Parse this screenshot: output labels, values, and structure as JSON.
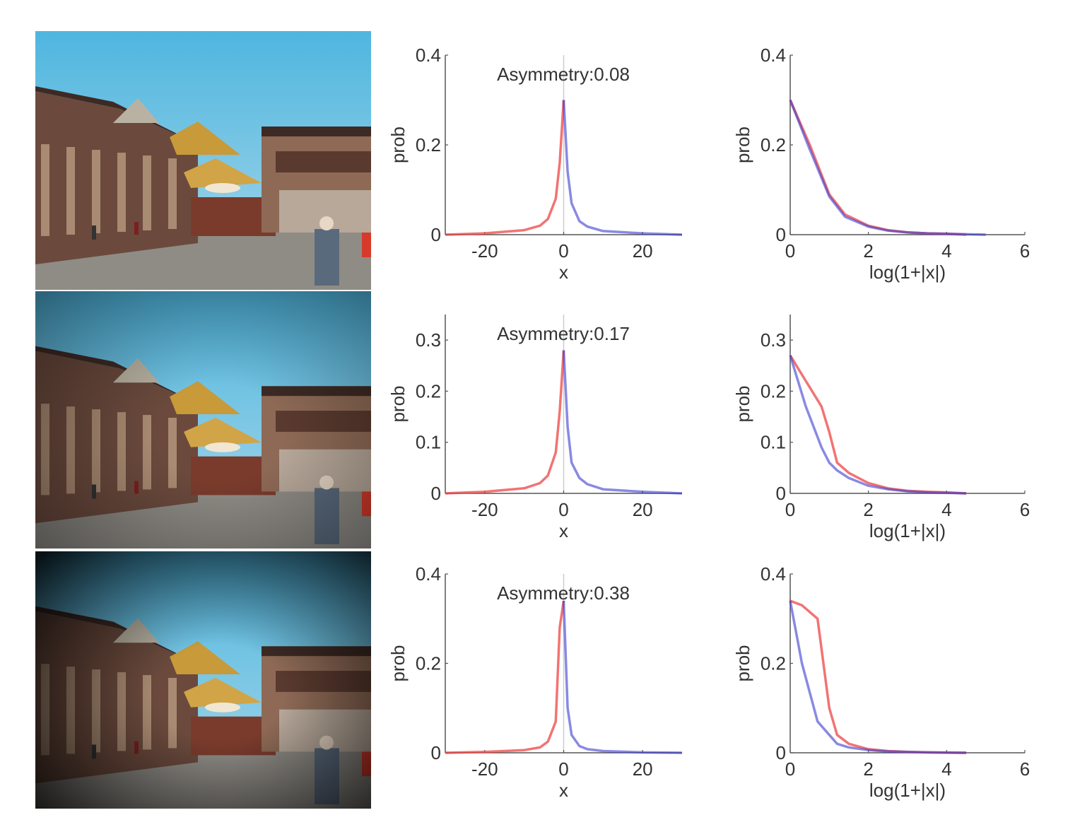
{
  "colors": {
    "red_series": "#ee4444",
    "blue_series": "#3a3ad0",
    "axis": "#555555"
  },
  "photos": [
    {
      "variant": "original",
      "vignette": 0.0
    },
    {
      "variant": "mild-vignette",
      "vignette": 0.45
    },
    {
      "variant": "strong-vignette",
      "vignette": 0.9
    }
  ],
  "chart_data": [
    {
      "type": "line",
      "panel": "row1-linear",
      "annotation": "Asymmetry:0.08",
      "xlabel": "x",
      "ylabel": "prob",
      "xlim": [
        -30,
        30
      ],
      "ylim": [
        0,
        0.4
      ],
      "xticks": [
        -20,
        0,
        20
      ],
      "yticks": [
        0,
        0.2,
        0.4
      ],
      "series": [
        {
          "color": "red",
          "x": [
            -30,
            -20,
            -10,
            -6,
            -4,
            -2,
            -1,
            0
          ],
          "y": [
            0.0,
            0.003,
            0.01,
            0.02,
            0.035,
            0.08,
            0.16,
            0.3
          ]
        },
        {
          "color": "blue",
          "x": [
            0,
            1,
            2,
            4,
            6,
            10,
            20,
            30
          ],
          "y": [
            0.3,
            0.14,
            0.07,
            0.03,
            0.018,
            0.008,
            0.003,
            0.0
          ]
        }
      ]
    },
    {
      "type": "line",
      "panel": "row1-log",
      "xlabel": "log(1+|x|)",
      "ylabel": "prob",
      "xlim": [
        0,
        6
      ],
      "ylim": [
        0,
        0.4
      ],
      "xticks": [
        0,
        2,
        4,
        6
      ],
      "yticks": [
        0,
        0.2,
        0.4
      ],
      "series": [
        {
          "color": "red",
          "x": [
            0,
            0.5,
            1.0,
            1.4,
            2,
            2.5,
            3,
            3.5,
            4,
            4.5
          ],
          "y": [
            0.3,
            0.2,
            0.09,
            0.045,
            0.02,
            0.01,
            0.005,
            0.003,
            0.002,
            0.0
          ]
        },
        {
          "color": "blue",
          "x": [
            0,
            0.5,
            1.0,
            1.4,
            2,
            2.5,
            3,
            3.5,
            4,
            4.5,
            5
          ],
          "y": [
            0.3,
            0.19,
            0.085,
            0.04,
            0.018,
            0.009,
            0.005,
            0.003,
            0.002,
            0.001,
            0.0
          ]
        }
      ]
    },
    {
      "type": "line",
      "panel": "row2-linear",
      "annotation": "Asymmetry:0.17",
      "xlabel": "x",
      "ylabel": "prob",
      "xlim": [
        -30,
        30
      ],
      "ylim": [
        0,
        0.35
      ],
      "xticks": [
        -20,
        0,
        20
      ],
      "yticks": [
        0,
        0.1,
        0.2,
        0.3
      ],
      "series": [
        {
          "color": "red",
          "x": [
            -30,
            -20,
            -10,
            -6,
            -4,
            -2,
            -1,
            0
          ],
          "y": [
            0.0,
            0.003,
            0.01,
            0.02,
            0.035,
            0.08,
            0.16,
            0.28
          ]
        },
        {
          "color": "blue",
          "x": [
            0,
            1,
            2,
            4,
            6,
            10,
            20,
            30
          ],
          "y": [
            0.28,
            0.13,
            0.06,
            0.03,
            0.018,
            0.008,
            0.003,
            0.0
          ]
        }
      ]
    },
    {
      "type": "line",
      "panel": "row2-log",
      "xlabel": "log(1+|x|)",
      "ylabel": "prob",
      "xlim": [
        0,
        6
      ],
      "ylim": [
        0,
        0.35
      ],
      "xticks": [
        0,
        2,
        4,
        6
      ],
      "yticks": [
        0,
        0.1,
        0.2,
        0.3
      ],
      "series": [
        {
          "color": "red",
          "x": [
            0,
            0.4,
            0.8,
            1.0,
            1.2,
            1.5,
            2,
            2.5,
            3,
            3.5,
            4,
            4.5
          ],
          "y": [
            0.27,
            0.22,
            0.17,
            0.12,
            0.06,
            0.04,
            0.02,
            0.01,
            0.005,
            0.003,
            0.002,
            0.0
          ]
        },
        {
          "color": "blue",
          "x": [
            0,
            0.4,
            0.8,
            1.0,
            1.2,
            1.5,
            2,
            2.5,
            3,
            3.5,
            4,
            4.5
          ],
          "y": [
            0.27,
            0.17,
            0.09,
            0.06,
            0.045,
            0.03,
            0.015,
            0.008,
            0.004,
            0.002,
            0.001,
            0.0
          ]
        }
      ]
    },
    {
      "type": "line",
      "panel": "row3-linear",
      "annotation": "Asymmetry:0.38",
      "xlabel": "x",
      "ylabel": "prob",
      "xlim": [
        -30,
        30
      ],
      "ylim": [
        0,
        0.4
      ],
      "xticks": [
        -20,
        0,
        20
      ],
      "yticks": [
        0,
        0.2,
        0.4
      ],
      "series": [
        {
          "color": "red",
          "x": [
            -30,
            -20,
            -10,
            -6,
            -4,
            -2,
            -1,
            0
          ],
          "y": [
            0.0,
            0.002,
            0.006,
            0.012,
            0.025,
            0.07,
            0.28,
            0.34
          ]
        },
        {
          "color": "blue",
          "x": [
            0,
            1,
            2,
            4,
            6,
            10,
            20,
            30
          ],
          "y": [
            0.34,
            0.1,
            0.04,
            0.015,
            0.008,
            0.004,
            0.001,
            0.0
          ]
        }
      ]
    },
    {
      "type": "line",
      "panel": "row3-log",
      "xlabel": "log(1+|x|)",
      "ylabel": "prob",
      "xlim": [
        0,
        6
      ],
      "ylim": [
        0,
        0.4
      ],
      "xticks": [
        0,
        2,
        4,
        6
      ],
      "yticks": [
        0,
        0.2,
        0.4
      ],
      "series": [
        {
          "color": "red",
          "x": [
            0,
            0.3,
            0.7,
            0.85,
            1.0,
            1.2,
            1.5,
            2,
            2.5,
            3,
            3.5,
            4,
            4.5
          ],
          "y": [
            0.34,
            0.33,
            0.3,
            0.2,
            0.1,
            0.04,
            0.02,
            0.008,
            0.004,
            0.002,
            0.001,
            0.0005,
            0.0
          ]
        },
        {
          "color": "blue",
          "x": [
            0,
            0.3,
            0.7,
            1.0,
            1.2,
            1.5,
            2,
            2.5,
            3,
            3.5,
            4,
            4.5
          ],
          "y": [
            0.34,
            0.2,
            0.07,
            0.04,
            0.02,
            0.012,
            0.006,
            0.003,
            0.002,
            0.001,
            0.0005,
            0.0
          ]
        }
      ]
    }
  ]
}
